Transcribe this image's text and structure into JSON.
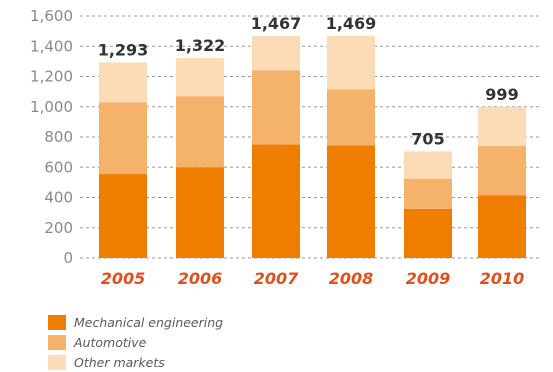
{
  "colors": {
    "mechanical": "#ee7d00",
    "automotive": "#f5b26b",
    "other": "#fbdcb6",
    "category_label": "#e0501e",
    "grid": "#9a9a9a"
  },
  "chart_data": {
    "type": "bar",
    "stacked": true,
    "categories": [
      "2005",
      "2006",
      "2007",
      "2008",
      "2009",
      "2010"
    ],
    "series": [
      {
        "name": "Mechanical engineering",
        "values": [
          555,
          600,
          750,
          745,
          325,
          415
        ]
      },
      {
        "name": "Automotive",
        "values": [
          475,
          470,
          490,
          370,
          200,
          325
        ]
      },
      {
        "name": "Other markets",
        "values": [
          263,
          252,
          227,
          354,
          180,
          259
        ]
      }
    ],
    "totals": [
      "1,293",
      "1,322",
      "1,467",
      "1,469",
      "705",
      "999"
    ],
    "yticks": [
      "0",
      "200",
      "400",
      "600",
      "800",
      "1,000",
      "1,200",
      "1,400",
      "1,600"
    ],
    "ylim": [
      0,
      1600
    ],
    "grid": true,
    "legend_position": "bottom-left"
  }
}
